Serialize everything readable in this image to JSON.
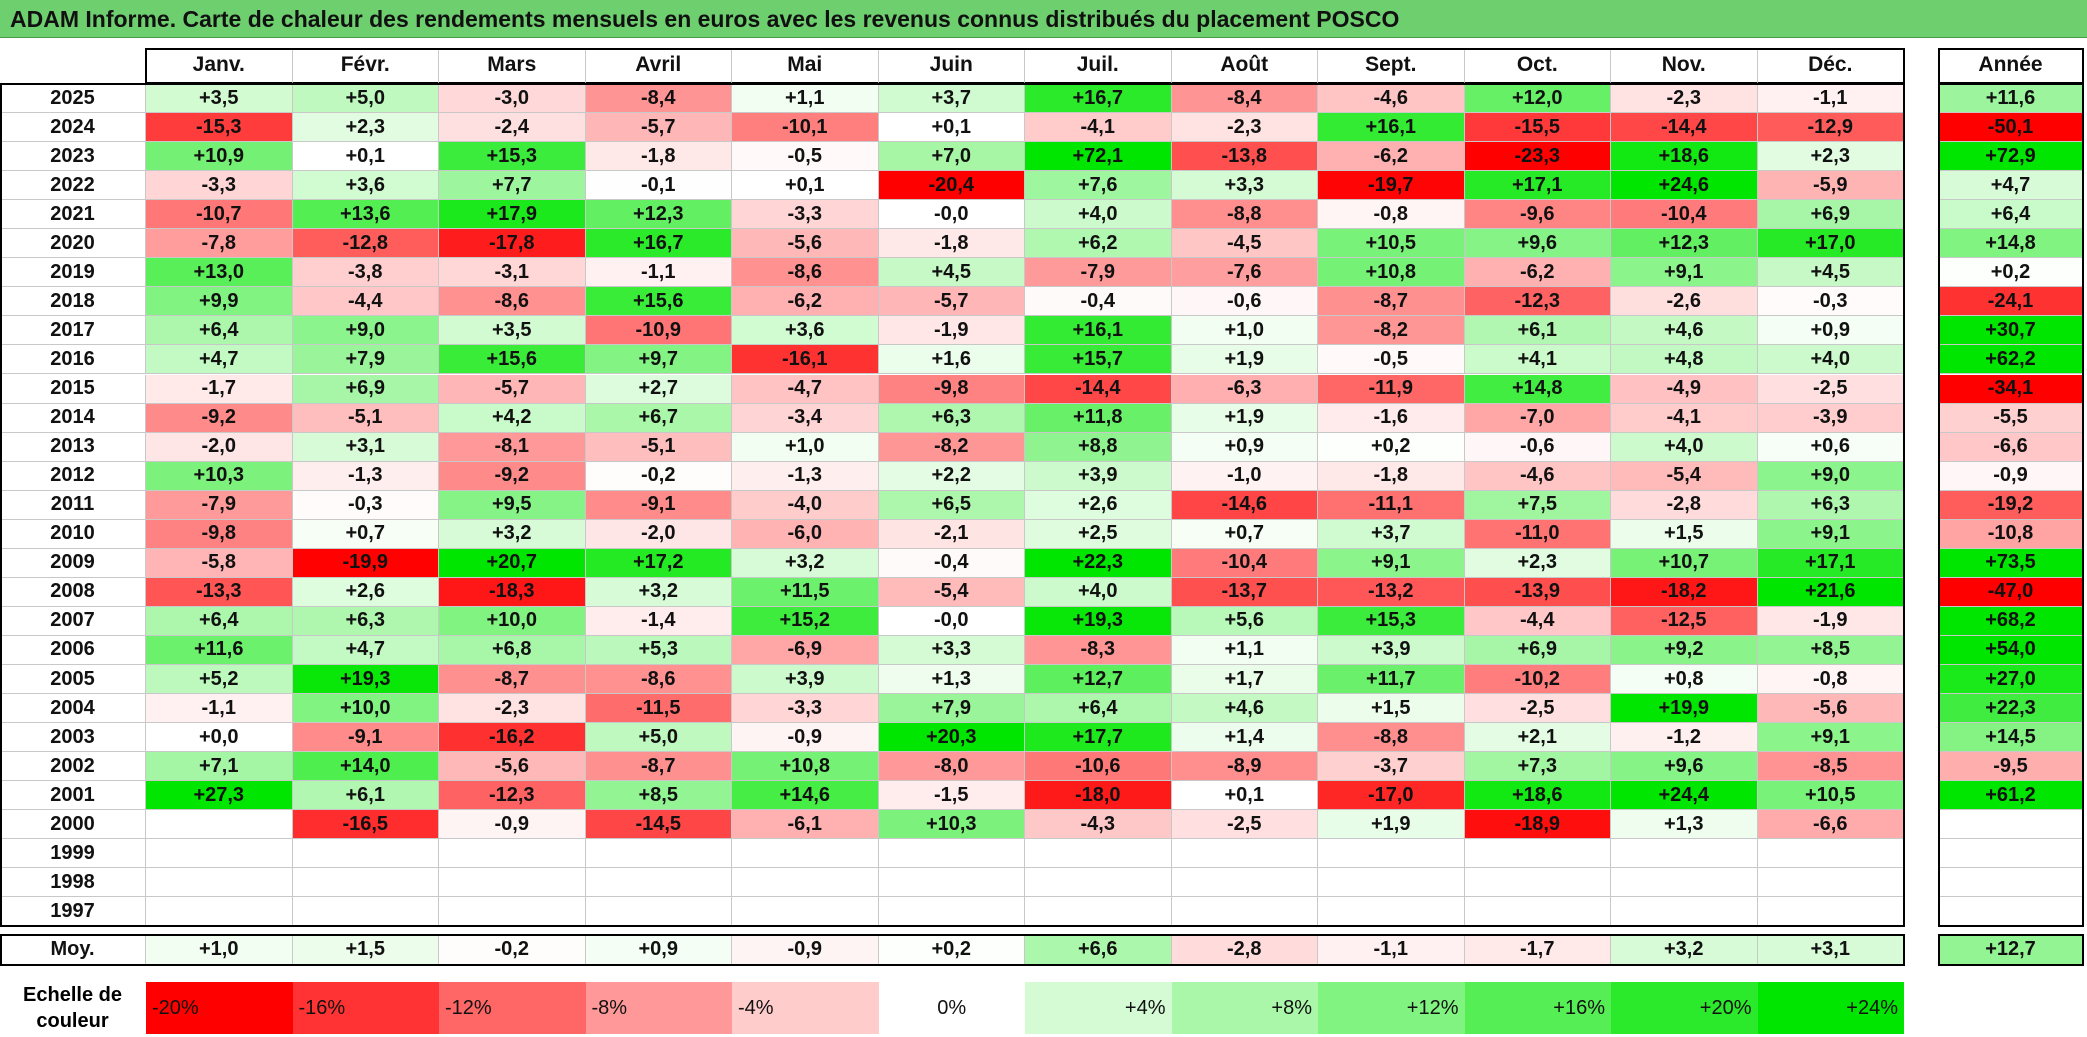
{
  "title": "ADAM Informe. Carte de chaleur des rendements mensuels en euros avec les revenus connus distribués du placement POSCO",
  "chart_data": {
    "type": "heatmap",
    "title": "ADAM Informe. Carte de chaleur des rendements mensuels en euros avec les revenus connus distribués du placement POSCO",
    "months": [
      "Janv.",
      "Févr.",
      "Mars",
      "Avril",
      "Mai",
      "Juin",
      "Juil.",
      "Août",
      "Sept.",
      "Oct.",
      "Nov.",
      "Déc."
    ],
    "annual_label": "Année",
    "average_label": "Moy.",
    "rows": [
      {
        "year": "2025",
        "values": [
          "+3,5",
          "+5,0",
          "-3,0",
          "-8,4",
          "+1,1",
          "+3,7",
          "+16,7",
          "-8,4",
          "-4,6",
          "+12,0",
          "-2,3",
          "-1,1"
        ],
        "annual": "+11,6"
      },
      {
        "year": "2024",
        "values": [
          "-15,3",
          "+2,3",
          "-2,4",
          "-5,7",
          "-10,1",
          "+0,1",
          "-4,1",
          "-2,3",
          "+16,1",
          "-15,5",
          "-14,4",
          "-12,9"
        ],
        "annual": "-50,1"
      },
      {
        "year": "2023",
        "values": [
          "+10,9",
          "+0,1",
          "+15,3",
          "-1,8",
          "-0,5",
          "+7,0",
          "+72,1",
          "-13,8",
          "-6,2",
          "-23,3",
          "+18,6",
          "+2,3"
        ],
        "annual": "+72,9"
      },
      {
        "year": "2022",
        "values": [
          "-3,3",
          "+3,6",
          "+7,7",
          "-0,1",
          "+0,1",
          "-20,4",
          "+7,6",
          "+3,3",
          "-19,7",
          "+17,1",
          "+24,6",
          "-5,9"
        ],
        "annual": "+4,7"
      },
      {
        "year": "2021",
        "values": [
          "-10,7",
          "+13,6",
          "+17,9",
          "+12,3",
          "-3,3",
          "-0,0",
          "+4,0",
          "-8,8",
          "-0,8",
          "-9,6",
          "-10,4",
          "+6,9"
        ],
        "annual": "+6,4"
      },
      {
        "year": "2020",
        "values": [
          "-7,8",
          "-12,8",
          "-17,8",
          "+16,7",
          "-5,6",
          "-1,8",
          "+6,2",
          "-4,5",
          "+10,5",
          "+9,6",
          "+12,3",
          "+17,0"
        ],
        "annual": "+14,8"
      },
      {
        "year": "2019",
        "values": [
          "+13,0",
          "-3,8",
          "-3,1",
          "-1,1",
          "-8,6",
          "+4,5",
          "-7,9",
          "-7,6",
          "+10,8",
          "-6,2",
          "+9,1",
          "+4,5"
        ],
        "annual": "+0,2"
      },
      {
        "year": "2018",
        "values": [
          "+9,9",
          "-4,4",
          "-8,6",
          "+15,6",
          "-6,2",
          "-5,7",
          "-0,4",
          "-0,6",
          "-8,7",
          "-12,3",
          "-2,6",
          "-0,3"
        ],
        "annual": "-24,1"
      },
      {
        "year": "2017",
        "values": [
          "+6,4",
          "+9,0",
          "+3,5",
          "-10,9",
          "+3,6",
          "-1,9",
          "+16,1",
          "+1,0",
          "-8,2",
          "+6,1",
          "+4,6",
          "+0,9"
        ],
        "annual": "+30,7"
      },
      {
        "year": "2016",
        "values": [
          "+4,7",
          "+7,9",
          "+15,6",
          "+9,7",
          "-16,1",
          "+1,6",
          "+15,7",
          "+1,9",
          "-0,5",
          "+4,1",
          "+4,8",
          "+4,0"
        ],
        "annual": "+62,2"
      },
      {
        "year": "2015",
        "values": [
          "-1,7",
          "+6,9",
          "-5,7",
          "+2,7",
          "-4,7",
          "-9,8",
          "-14,4",
          "-6,3",
          "-11,9",
          "+14,8",
          "-4,9",
          "-2,5"
        ],
        "annual": "-34,1"
      },
      {
        "year": "2014",
        "values": [
          "-9,2",
          "-5,1",
          "+4,2",
          "+6,7",
          "-3,4",
          "+6,3",
          "+11,8",
          "+1,9",
          "-1,6",
          "-7,0",
          "-4,1",
          "-3,9"
        ],
        "annual": "-5,5"
      },
      {
        "year": "2013",
        "values": [
          "-2,0",
          "+3,1",
          "-8,1",
          "-5,1",
          "+1,0",
          "-8,2",
          "+8,8",
          "+0,9",
          "+0,2",
          "-0,6",
          "+4,0",
          "+0,6"
        ],
        "annual": "-6,6"
      },
      {
        "year": "2012",
        "values": [
          "+10,3",
          "-1,3",
          "-9,2",
          "-0,2",
          "-1,3",
          "+2,2",
          "+3,9",
          "-1,0",
          "-1,8",
          "-4,6",
          "-5,4",
          "+9,0"
        ],
        "annual": "-0,9"
      },
      {
        "year": "2011",
        "values": [
          "-7,9",
          "-0,3",
          "+9,5",
          "-9,1",
          "-4,0",
          "+6,5",
          "+2,6",
          "-14,6",
          "-11,1",
          "+7,5",
          "-2,8",
          "+6,3"
        ],
        "annual": "-19,2"
      },
      {
        "year": "2010",
        "values": [
          "-9,8",
          "+0,7",
          "+3,2",
          "-2,0",
          "-6,0",
          "-2,1",
          "+2,5",
          "+0,7",
          "+3,7",
          "-11,0",
          "+1,5",
          "+9,1"
        ],
        "annual": "-10,8"
      },
      {
        "year": "2009",
        "values": [
          "-5,8",
          "-19,9",
          "+20,7",
          "+17,2",
          "+3,2",
          "-0,4",
          "+22,3",
          "-10,4",
          "+9,1",
          "+2,3",
          "+10,7",
          "+17,1"
        ],
        "annual": "+73,5"
      },
      {
        "year": "2008",
        "values": [
          "-13,3",
          "+2,6",
          "-18,3",
          "+3,2",
          "+11,5",
          "-5,4",
          "+4,0",
          "-13,7",
          "-13,2",
          "-13,9",
          "-18,2",
          "+21,6"
        ],
        "annual": "-47,0"
      },
      {
        "year": "2007",
        "values": [
          "+6,4",
          "+6,3",
          "+10,0",
          "-1,4",
          "+15,2",
          "-0,0",
          "+19,3",
          "+5,6",
          "+15,3",
          "-4,4",
          "-12,5",
          "-1,9"
        ],
        "annual": "+68,2"
      },
      {
        "year": "2006",
        "values": [
          "+11,6",
          "+4,7",
          "+6,8",
          "+5,3",
          "-6,9",
          "+3,3",
          "-8,3",
          "+1,1",
          "+3,9",
          "+6,9",
          "+9,2",
          "+8,5"
        ],
        "annual": "+54,0"
      },
      {
        "year": "2005",
        "values": [
          "+5,2",
          "+19,3",
          "-8,7",
          "-8,6",
          "+3,9",
          "+1,3",
          "+12,7",
          "+1,7",
          "+11,7",
          "-10,2",
          "+0,8",
          "-0,8"
        ],
        "annual": "+27,0"
      },
      {
        "year": "2004",
        "values": [
          "-1,1",
          "+10,0",
          "-2,3",
          "-11,5",
          "-3,3",
          "+7,9",
          "+6,4",
          "+4,6",
          "+1,5",
          "-2,5",
          "+19,9",
          "-5,6"
        ],
        "annual": "+22,3"
      },
      {
        "year": "2003",
        "values": [
          "+0,0",
          "-9,1",
          "-16,2",
          "+5,0",
          "-0,9",
          "+20,3",
          "+17,7",
          "+1,4",
          "-8,8",
          "+2,1",
          "-1,2",
          "+9,1"
        ],
        "annual": "+14,5"
      },
      {
        "year": "2002",
        "values": [
          "+7,1",
          "+14,0",
          "-5,6",
          "-8,7",
          "+10,8",
          "-8,0",
          "-10,6",
          "-8,9",
          "-3,7",
          "+7,3",
          "+9,6",
          "-8,5"
        ],
        "annual": "-9,5"
      },
      {
        "year": "2001",
        "values": [
          "+27,3",
          "+6,1",
          "-12,3",
          "+8,5",
          "+14,6",
          "-1,5",
          "-18,0",
          "+0,1",
          "-17,0",
          "+18,6",
          "+24,4",
          "+10,5"
        ],
        "annual": "+61,2"
      },
      {
        "year": "2000",
        "values": [
          "",
          "-16,5",
          "-0,9",
          "-14,5",
          "-6,1",
          "+10,3",
          "-4,3",
          "-2,5",
          "+1,9",
          "-18,9",
          "+1,3",
          "-6,6"
        ],
        "annual": ""
      },
      {
        "year": "1999",
        "values": [
          "",
          "",
          "",
          "",
          "",
          "",
          "",
          "",
          "",
          "",
          "",
          ""
        ],
        "annual": ""
      },
      {
        "year": "1998",
        "values": [
          "",
          "",
          "",
          "",
          "",
          "",
          "",
          "",
          "",
          "",
          "",
          ""
        ],
        "annual": ""
      },
      {
        "year": "1997",
        "values": [
          "",
          "",
          "",
          "",
          "",
          "",
          "",
          "",
          "",
          "",
          "",
          ""
        ],
        "annual": ""
      }
    ],
    "averages": [
      "+1,0",
      "+1,5",
      "-0,2",
      "+0,9",
      "-0,9",
      "+0,2",
      "+6,6",
      "-2,8",
      "-1,1",
      "-1,7",
      "+3,2",
      "+3,1"
    ],
    "average_annual": "+12,7",
    "scale_label_line1": "Echelle de",
    "scale_label_line2": "couleur",
    "scale": [
      "-20%",
      "-16%",
      "-12%",
      "-8%",
      "-4%",
      "0%",
      "+4%",
      "+8%",
      "+12%",
      "+16%",
      "+20%",
      "+24%"
    ]
  }
}
